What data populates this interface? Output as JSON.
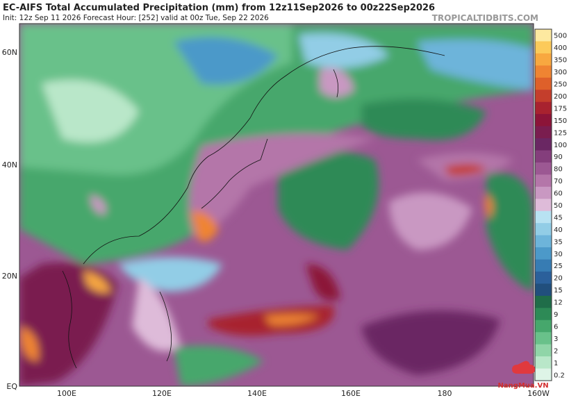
{
  "header": {
    "title": "EC-AIFS Total Accumulated Precipitation (mm) from 12z11Sep2026 to 00z22Sep2026",
    "subtitle": "Init: 12z Sep 11 2026   Forecast Hour: [252]   valid at 00z Tue, Sep 22 2026",
    "site": "TROPICALTIDBITS.COM"
  },
  "map": {
    "lat_labels": [
      "60N",
      "40N",
      "20N",
      "EQ"
    ],
    "lon_labels": [
      "100E",
      "120E",
      "140E",
      "160E",
      "180",
      "160W"
    ]
  },
  "colorbar": {
    "levels": [
      {
        "label": "500",
        "color": "#fde9a0"
      },
      {
        "label": "400",
        "color": "#fcca5a"
      },
      {
        "label": "350",
        "color": "#f8a840"
      },
      {
        "label": "300",
        "color": "#ef8432"
      },
      {
        "label": "250",
        "color": "#de602a"
      },
      {
        "label": "200",
        "color": "#c43e2c"
      },
      {
        "label": "175",
        "color": "#a8222f"
      },
      {
        "label": "150",
        "color": "#8c1438"
      },
      {
        "label": "125",
        "color": "#7a1d4f"
      },
      {
        "label": "100",
        "color": "#6a2763"
      },
      {
        "label": "90",
        "color": "#843e7c"
      },
      {
        "label": "80",
        "color": "#9c5893"
      },
      {
        "label": "70",
        "color": "#b476a9"
      },
      {
        "label": "60",
        "color": "#c998c2"
      },
      {
        "label": "50",
        "color": "#debbd9"
      },
      {
        "label": "45",
        "color": "#b8e2f2"
      },
      {
        "label": "40",
        "color": "#92cde6"
      },
      {
        "label": "35",
        "color": "#6db4da"
      },
      {
        "label": "30",
        "color": "#4c99c9"
      },
      {
        "label": "25",
        "color": "#377cb3"
      },
      {
        "label": "20",
        "color": "#2b609b"
      },
      {
        "label": "15",
        "color": "#214f7d"
      },
      {
        "label": "12",
        "color": "#1f6d49"
      },
      {
        "label": "9",
        "color": "#2d8a56"
      },
      {
        "label": "6",
        "color": "#46a76c"
      },
      {
        "label": "3",
        "color": "#69c18a"
      },
      {
        "label": "2",
        "color": "#90d5a8"
      },
      {
        "label": "1",
        "color": "#b9e7c9"
      },
      {
        "label": "0.2",
        "color": "#def4e7"
      }
    ]
  },
  "watermark": {
    "text": "NangMua.VN"
  }
}
